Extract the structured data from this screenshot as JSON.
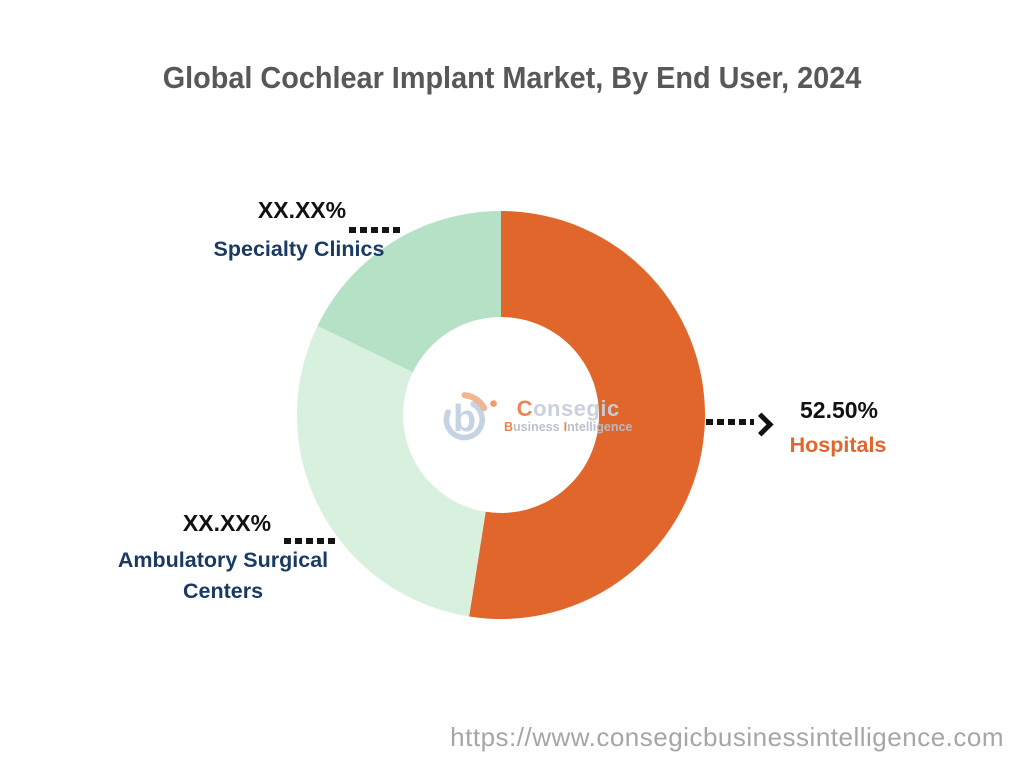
{
  "chart_data": {
    "type": "pie",
    "subtype": "donut",
    "title": "Global Cochlear Implant Market, By End User, 2024",
    "unit": "%",
    "start_angle_deg": -90,
    "direction": "clockwise",
    "legend": "none",
    "annotation_style": "dotted-leader-lines",
    "segments": [
      {
        "label": "Hospitals",
        "display_value": "52.50%",
        "value": 52.5,
        "color": "#E1662B",
        "label_color": "#E1662B"
      },
      {
        "label": "Ambulatory Surgical Centers",
        "display_value": "XX.XX%",
        "value": 29.7,
        "value_note": "redacted in source; angle-estimated",
        "color": "#D8F0DE",
        "label_color": "#1A3A64"
      },
      {
        "label": "Specialty Clinics",
        "display_value": "XX.XX%",
        "value": 17.8,
        "value_note": "redacted in source; angle-estimated",
        "color": "#B5E1C6",
        "label_color": "#1A3A64"
      }
    ]
  },
  "logo": {
    "name": {
      "initial": "C",
      "rest": "onsegic"
    },
    "tagline": [
      {
        "initial": "B",
        "rest": "usiness"
      },
      {
        "initial": "I",
        "rest": "ntelligence"
      }
    ],
    "accent_color": "#E8804B",
    "muted_color": "#C8CFDB"
  },
  "footer": {
    "url": "https://www.consegicbusinessintelligence.com"
  }
}
